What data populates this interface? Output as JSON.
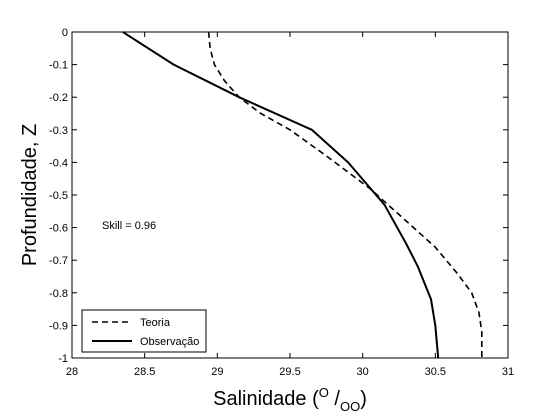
{
  "chart_data": {
    "type": "line",
    "xlabel": "Salinidade (",
    "xlabel_sup": "O",
    "xlabel_slash": " /",
    "xlabel_sub": "OO",
    "xlabel_close": ")",
    "ylabel": "Profundidade, Z",
    "xlim": [
      28,
      31
    ],
    "ylim": [
      -1,
      0
    ],
    "xticks": [
      28,
      28.5,
      29,
      29.5,
      30,
      30.5,
      31
    ],
    "xtick_labels": [
      "28",
      "28.5",
      "29",
      "29.5",
      "30",
      "30.5",
      "31"
    ],
    "yticks": [
      0,
      -0.1,
      -0.2,
      -0.3,
      -0.4,
      -0.5,
      -0.6,
      -0.7,
      -0.8,
      -0.9,
      -1
    ],
    "ytick_labels": [
      "0",
      "-0.1",
      "-0.2",
      "-0.3",
      "-0.4",
      "-0.5",
      "-0.6",
      "-0.7",
      "-0.8",
      "-0.9",
      "-1"
    ],
    "grid": false,
    "legend_position": "bottom-left",
    "annotation": "Skill =  0.96",
    "series": [
      {
        "name": "Teoria",
        "style": "dashed",
        "color": "#000000",
        "x": [
          28.94,
          28.95,
          28.98,
          29.05,
          29.15,
          29.3,
          29.5,
          29.75,
          30.05,
          30.3,
          30.5,
          30.65,
          30.75,
          30.8,
          30.82,
          30.82
        ],
        "y": [
          0,
          -0.05,
          -0.1,
          -0.15,
          -0.2,
          -0.25,
          -0.3,
          -0.38,
          -0.48,
          -0.58,
          -0.66,
          -0.74,
          -0.8,
          -0.86,
          -0.92,
          -1.0
        ]
      },
      {
        "name": "Observação",
        "style": "solid",
        "color": "#000000",
        "x": [
          28.35,
          28.7,
          29.15,
          29.65,
          29.9,
          30.15,
          30.3,
          30.38,
          30.47,
          30.5,
          30.52
        ],
        "y": [
          0,
          -0.1,
          -0.2,
          -0.3,
          -0.4,
          -0.53,
          -0.65,
          -0.72,
          -0.82,
          -0.9,
          -1.0
        ]
      }
    ]
  }
}
